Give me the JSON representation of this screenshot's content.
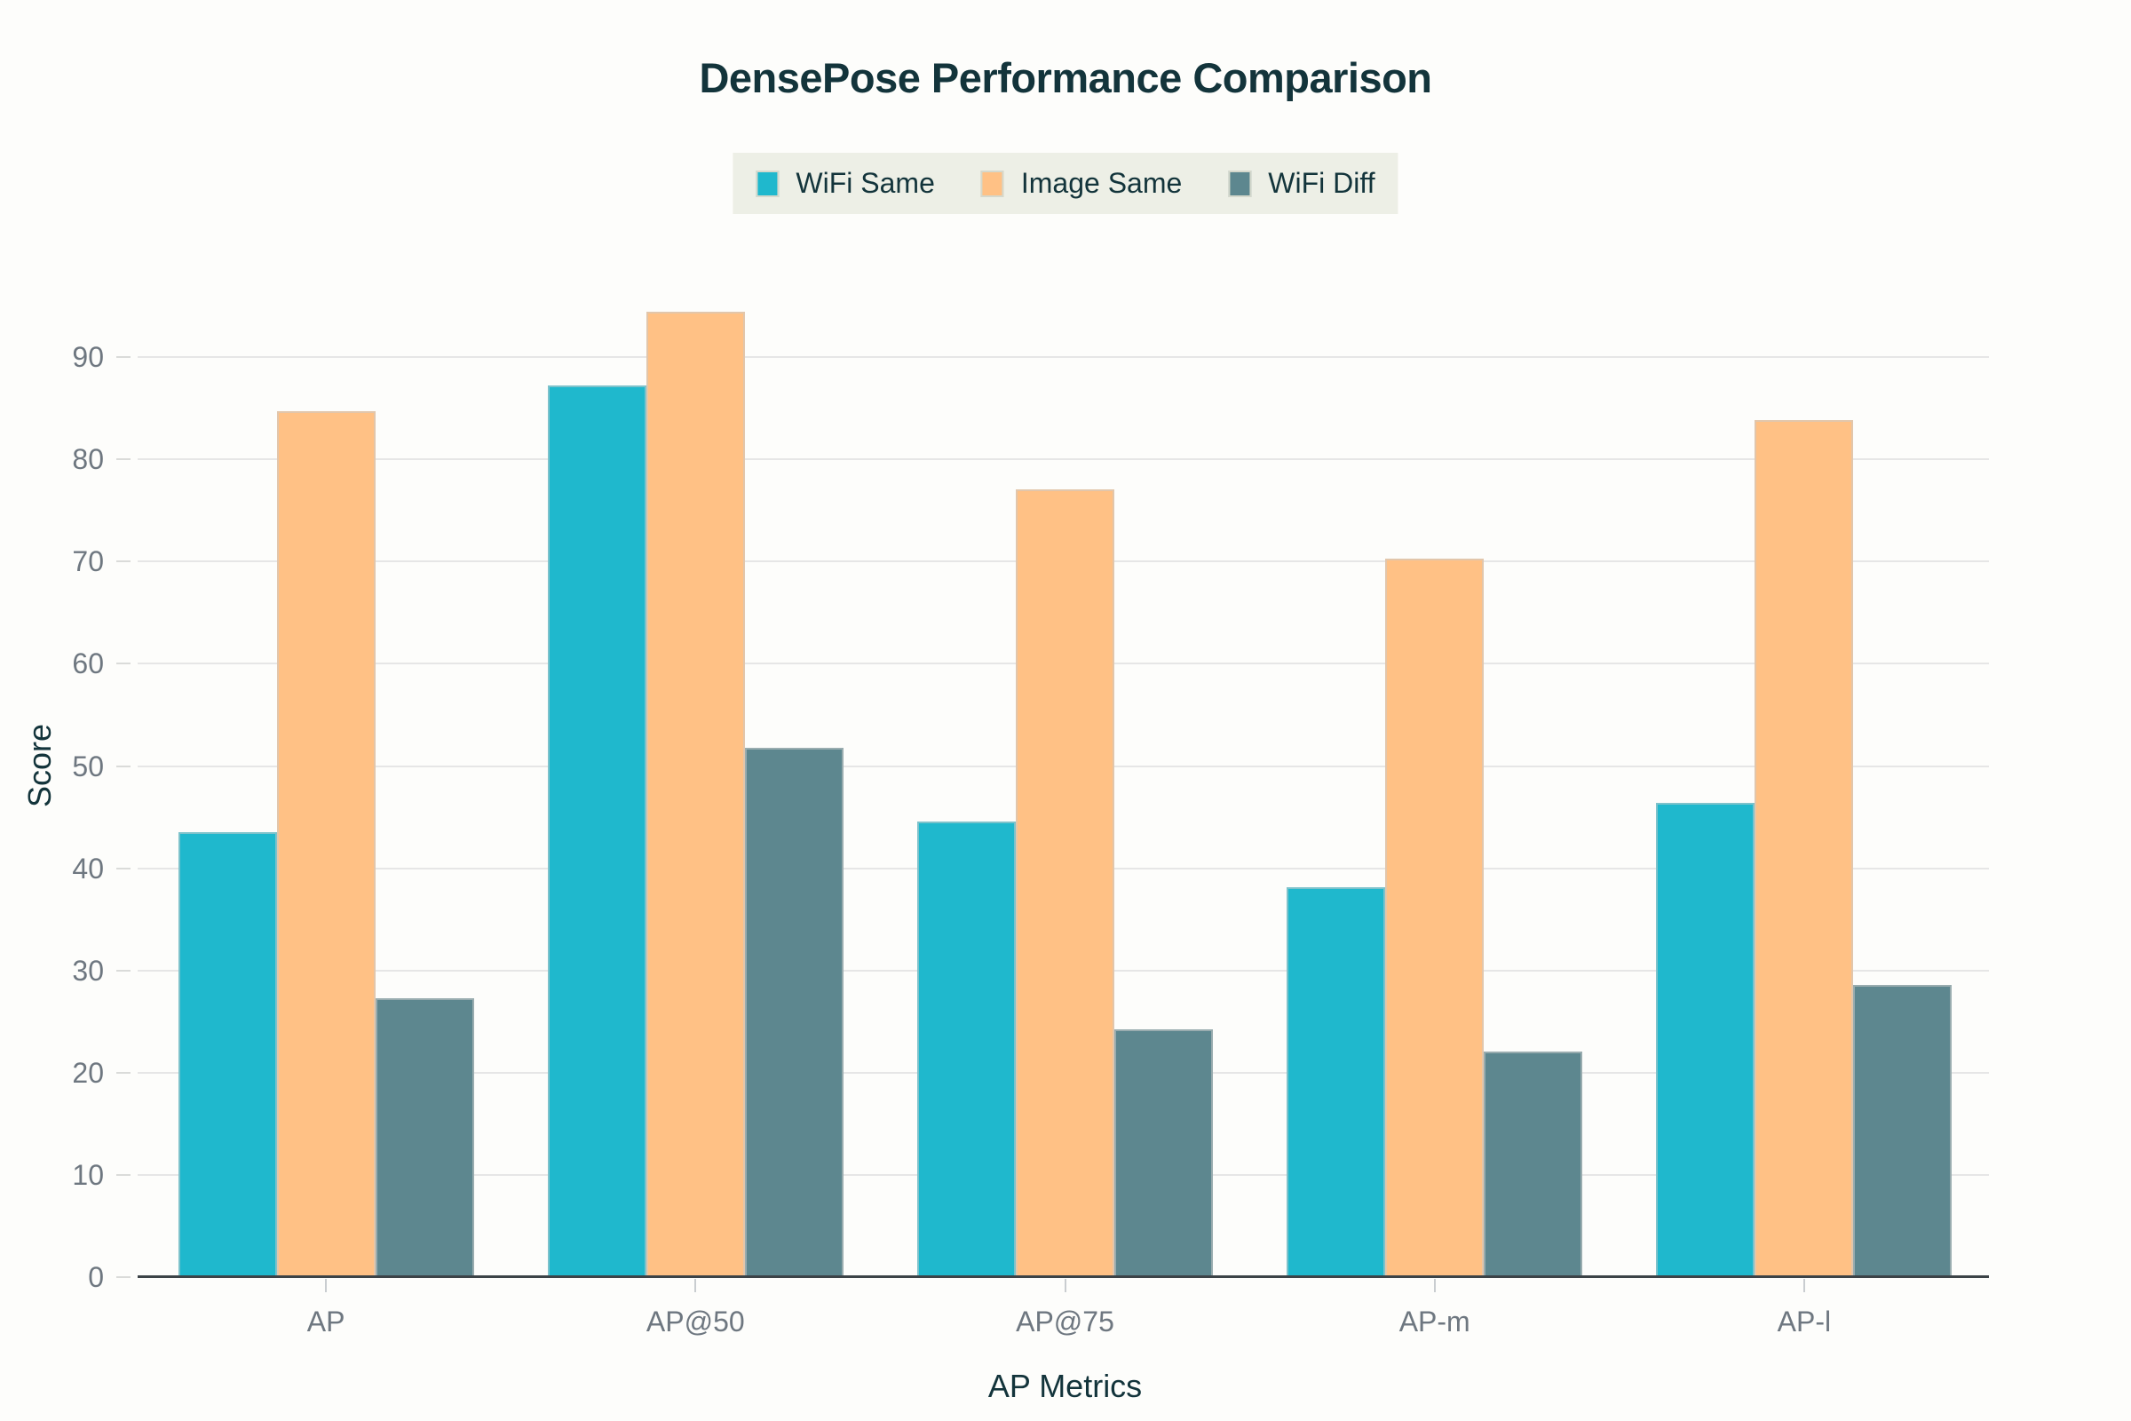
{
  "title": "DensePose Performance Comparison",
  "chart_data": {
    "type": "bar",
    "title": "DensePose Performance Comparison",
    "categories": [
      "AP",
      "AP@50",
      "AP@75",
      "AP-m",
      "AP-l"
    ],
    "series": [
      {
        "name": "WiFi Same",
        "color": "#1FB8CD",
        "values": [
          43.5,
          87.2,
          44.6,
          38.1,
          46.4
        ]
      },
      {
        "name": "Image Same",
        "color": "#FFC185",
        "values": [
          84.7,
          94.4,
          77.1,
          70.3,
          83.8
        ]
      },
      {
        "name": "WiFi Diff",
        "color": "#5D878F",
        "values": [
          27.3,
          51.8,
          24.2,
          22.1,
          28.6
        ]
      }
    ],
    "xlabel": "AP Metrics",
    "ylabel": "Score",
    "ylim": [
      0,
      100
    ],
    "yticks": [
      0,
      10,
      20,
      30,
      40,
      50,
      60,
      70,
      80,
      90
    ],
    "grid": true,
    "legend_position": "top-center"
  },
  "colors": {
    "background": "#FDFDFB",
    "legend_background": "#EDEFE6",
    "grid_color": "#E6E6E6",
    "axis_line_color": "#3C4347",
    "title_text": "#13343B",
    "tick_text": "#6E7780"
  }
}
